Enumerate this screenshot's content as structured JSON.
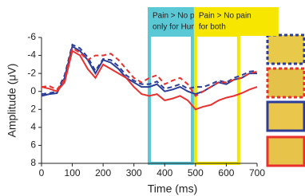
{
  "chart_data": {
    "type": "line",
    "x_label": "Time (ms)",
    "y_label": "Amplitude (μV)",
    "x": [
      0,
      25,
      50,
      75,
      100,
      125,
      150,
      175,
      200,
      225,
      250,
      275,
      300,
      325,
      350,
      375,
      400,
      425,
      450,
      475,
      500,
      525,
      550,
      575,
      600,
      625,
      650,
      675,
      700
    ],
    "series": [
      {
        "color": "#2b3d99",
        "dash": false,
        "values": [
          0.5,
          0.3,
          0.2,
          -1.5,
          -5,
          -4.5,
          -3.5,
          -2,
          -3.5,
          -3.2,
          -2.5,
          -1.5,
          -1,
          -0.5,
          -0.5,
          -0.8,
          0,
          -0.2,
          -0.5,
          0,
          0.3,
          0,
          -0.5,
          -1,
          -0.8,
          -1.3,
          -1.5,
          -2,
          -2
        ]
      },
      {
        "color": "#2b3d99",
        "dash": true,
        "values": [
          0.3,
          0.2,
          0,
          -1.8,
          -5.2,
          -4.8,
          -3.8,
          -2.3,
          -3.6,
          -3.5,
          -2.8,
          -1.8,
          -1.2,
          -0.8,
          -0.8,
          -1.1,
          -0.3,
          -0.5,
          -0.8,
          -0.3,
          -0.5,
          -0.5,
          -0.8,
          -1.2,
          -1,
          -1.5,
          -1.8,
          -2.2,
          -2.3
        ]
      },
      {
        "color": "#e8312f",
        "dash": false,
        "values": [
          -0.5,
          -0.3,
          0,
          -1,
          -4.5,
          -4,
          -2.5,
          -1.5,
          -3,
          -2.5,
          -2,
          -1.5,
          -0.5,
          0.3,
          0.5,
          0.3,
          1,
          0.8,
          0.5,
          1,
          2,
          1.7,
          1.5,
          1,
          0.7,
          0.5,
          0.2,
          -0.2,
          -0.5
        ]
      },
      {
        "color": "#e8312f",
        "dash": true,
        "values": [
          -0.5,
          -0.6,
          -0.2,
          -1.3,
          -4.8,
          -4.3,
          -3.5,
          -4,
          -4,
          -4.2,
          -3.5,
          -2.5,
          -1.5,
          -1,
          -1.5,
          -1.8,
          -0.8,
          -1.2,
          -1.5,
          -0.8,
          0.5,
          0,
          -0.5,
          -1,
          -1,
          -1.3,
          -1.5,
          -2,
          -2.2
        ]
      }
    ],
    "xlim": [
      0,
      700
    ],
    "xticks": [
      0,
      100,
      200,
      300,
      400,
      500,
      600,
      700
    ],
    "ylim": [
      8,
      -6
    ],
    "yticks": [
      -6,
      -4,
      -2,
      0,
      2,
      4,
      6,
      8
    ],
    "annotations": [
      {
        "lines": [
          "Pain > No pain",
          "only for Human"
        ],
        "x_range": [
          350,
          490
        ],
        "color": "#5bc8d6"
      },
      {
        "lines": [
          "Pain > No pain",
          "for both"
        ],
        "x_range": [
          500,
          640
        ],
        "color": "#f7e600"
      }
    ]
  }
}
